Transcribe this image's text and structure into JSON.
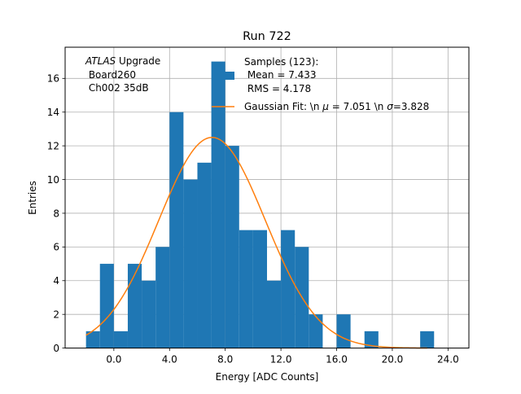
{
  "chart_data": {
    "type": "bar",
    "title": "Run 722",
    "xlabel": "Energy [ADC Counts]",
    "ylabel": "Entries",
    "xlim": [
      -3.5,
      25.5
    ],
    "ylim": [
      0,
      17.85
    ],
    "grid": true,
    "x_ticks": [
      "0.0",
      "4.0",
      "8.0",
      "12.0",
      "16.0",
      "20.0",
      "24.0"
    ],
    "x_tick_values": [
      0,
      4,
      8,
      12,
      16,
      20,
      24
    ],
    "y_ticks": [
      "0",
      "2",
      "4",
      "6",
      "8",
      "10",
      "12",
      "14",
      "16"
    ],
    "y_tick_values": [
      0,
      2,
      4,
      6,
      8,
      10,
      12,
      14,
      16
    ],
    "annotation_lines": [
      "ATLAS Upgrade",
      " Board260",
      " Ch002 35dB"
    ],
    "annotation_emphasis": "ATLAS",
    "bins": [
      {
        "x0": -2.0,
        "x1": -1.0,
        "count": 1
      },
      {
        "x0": -1.0,
        "x1": 0.0,
        "count": 5
      },
      {
        "x0": 0.0,
        "x1": 1.0,
        "count": 1
      },
      {
        "x0": 1.0,
        "x1": 2.0,
        "count": 5
      },
      {
        "x0": 2.0,
        "x1": 3.0,
        "count": 4
      },
      {
        "x0": 3.0,
        "x1": 4.0,
        "count": 6
      },
      {
        "x0": 4.0,
        "x1": 5.0,
        "count": 14
      },
      {
        "x0": 5.0,
        "x1": 6.0,
        "count": 10
      },
      {
        "x0": 6.0,
        "x1": 7.0,
        "count": 11
      },
      {
        "x0": 7.0,
        "x1": 8.0,
        "count": 17
      },
      {
        "x0": 8.0,
        "x1": 9.0,
        "count": 12
      },
      {
        "x0": 9.0,
        "x1": 10.0,
        "count": 7
      },
      {
        "x0": 10.0,
        "x1": 11.0,
        "count": 7
      },
      {
        "x0": 11.0,
        "x1": 12.0,
        "count": 4
      },
      {
        "x0": 12.0,
        "x1": 13.0,
        "count": 7
      },
      {
        "x0": 13.0,
        "x1": 14.0,
        "count": 6
      },
      {
        "x0": 14.0,
        "x1": 15.0,
        "count": 2
      },
      {
        "x0": 15.0,
        "x1": 16.0,
        "count": 0
      },
      {
        "x0": 16.0,
        "x1": 17.0,
        "count": 2
      },
      {
        "x0": 17.0,
        "x1": 18.0,
        "count": 0
      },
      {
        "x0": 18.0,
        "x1": 19.0,
        "count": 1
      },
      {
        "x0": 19.0,
        "x1": 20.0,
        "count": 0
      },
      {
        "x0": 20.0,
        "x1": 21.0,
        "count": 0
      },
      {
        "x0": 21.0,
        "x1": 22.0,
        "count": 0
      },
      {
        "x0": 22.0,
        "x1": 23.0,
        "count": 1
      }
    ],
    "series": [
      {
        "name": "Samples (123):\n Mean = 7.433\n RMS = 4.178",
        "kind": "histogram",
        "color": "#1f77b4"
      },
      {
        "name": "Gaussian Fit: \\n μ = 7.051 \\n σ=3.828",
        "kind": "line",
        "color": "#ff7f0e",
        "mu": 7.051,
        "sigma": 3.828,
        "amplitude": 12.5,
        "x_range": [
          -2.0,
          22.5
        ]
      }
    ],
    "legend": {
      "location": "top-right",
      "samples_lines": [
        "Samples (123):",
        " Mean = 7.433",
        " RMS = 4.178"
      ],
      "fit_label_prefix": "Gaussian Fit: \\n ",
      "fit_mu_symbol": "μ",
      "fit_mu_value": " = 7.051 \\n ",
      "fit_sigma_symbol": "σ",
      "fit_sigma_value": "=3.828"
    }
  }
}
